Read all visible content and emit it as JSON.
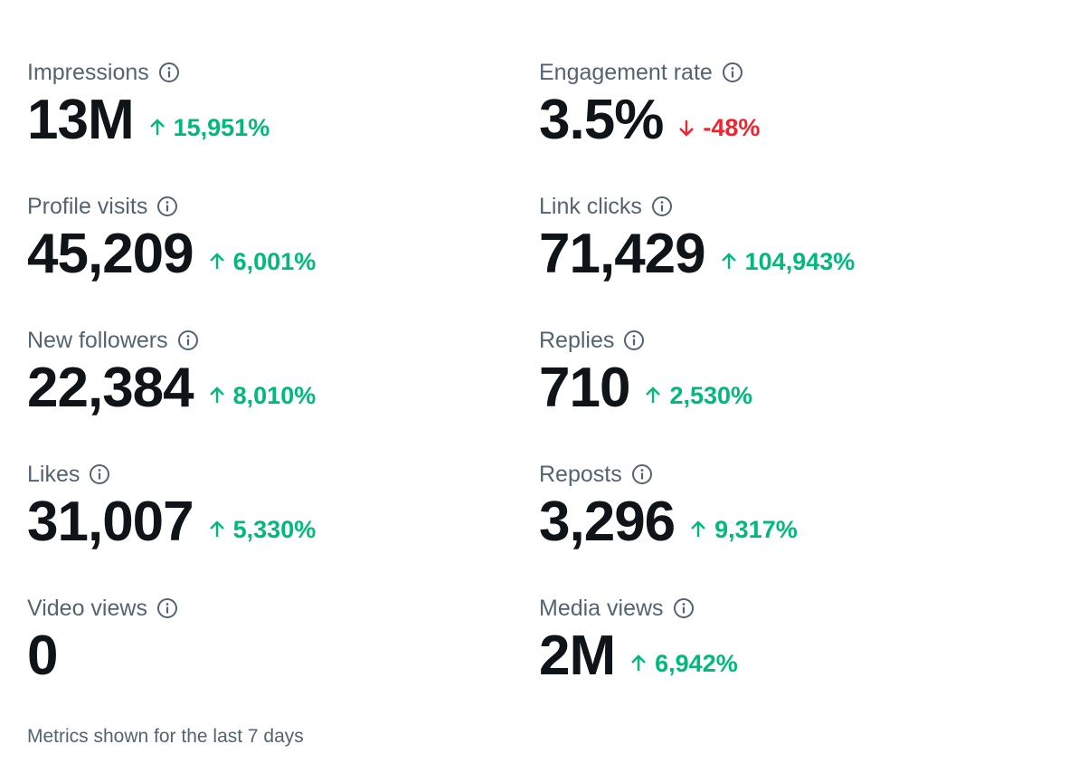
{
  "colors": {
    "label": "#536471",
    "value": "#0f1419",
    "positive": "#00ba7c",
    "negative": "#f4212e"
  },
  "metrics": [
    {
      "label": "Impressions",
      "value": "13M",
      "change": "15,951%",
      "direction": "up",
      "icon": "info-icon"
    },
    {
      "label": "Engagement rate",
      "value": "3.5%",
      "change": "-48%",
      "direction": "down",
      "icon": "info-icon"
    },
    {
      "label": "Profile visits",
      "value": "45,209",
      "change": "6,001%",
      "direction": "up",
      "icon": "info-icon"
    },
    {
      "label": "Link clicks",
      "value": "71,429",
      "change": "104,943%",
      "direction": "up",
      "icon": "info-icon"
    },
    {
      "label": "New followers",
      "value": "22,384",
      "change": "8,010%",
      "direction": "up",
      "icon": "info-icon"
    },
    {
      "label": "Replies",
      "value": "710",
      "change": "2,530%",
      "direction": "up",
      "icon": "info-icon"
    },
    {
      "label": "Likes",
      "value": "31,007",
      "change": "5,330%",
      "direction": "up",
      "icon": "info-icon"
    },
    {
      "label": "Reposts",
      "value": "3,296",
      "change": "9,317%",
      "direction": "up",
      "icon": "info-icon"
    },
    {
      "label": "Video views",
      "value": "0",
      "change": null,
      "direction": null,
      "icon": "info-icon"
    },
    {
      "label": "Media views",
      "value": "2M",
      "change": "6,942%",
      "direction": "up",
      "icon": "info-icon"
    }
  ],
  "footer": {
    "text": "Metrics shown for the last 7 days"
  }
}
